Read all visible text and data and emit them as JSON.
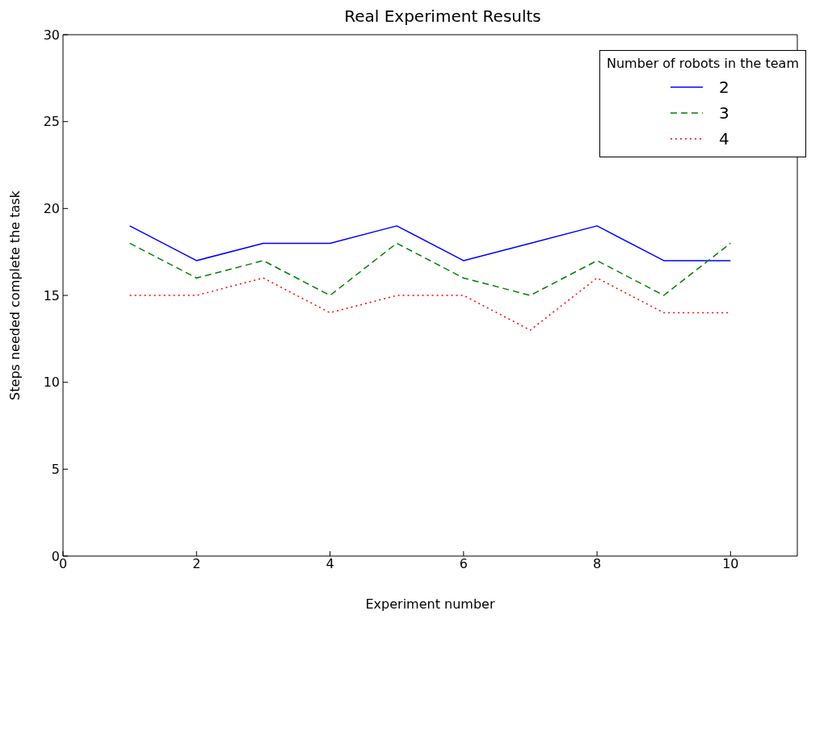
{
  "chart_data": {
    "type": "line",
    "title": "Real Experiment Results",
    "xlabel": "Experiment number",
    "ylabel": "Steps needed complete the task",
    "legend_title": "Number of robots in the team",
    "x": [
      1,
      2,
      3,
      4,
      5,
      6,
      7,
      8,
      9,
      10
    ],
    "series": [
      {
        "name": "2",
        "color": "#0000ff",
        "line_style": "solid",
        "values": [
          19,
          17,
          18,
          18,
          19,
          17,
          18,
          19,
          17,
          17
        ]
      },
      {
        "name": "3",
        "color": "#008000",
        "line_style": "dashed",
        "values": [
          18,
          16,
          17,
          15,
          18,
          16,
          15,
          17,
          15,
          18
        ]
      },
      {
        "name": "4",
        "color": "#ff0000",
        "line_style": "dotted",
        "values": [
          15,
          15,
          16,
          14,
          15,
          15,
          13,
          16,
          14,
          14
        ]
      }
    ],
    "xlim": [
      0,
      11
    ],
    "xticks": [
      0,
      2,
      4,
      6,
      8,
      10
    ],
    "ylim": [
      0,
      30
    ],
    "yticks": [
      0,
      5,
      10,
      15,
      20,
      25,
      30
    ],
    "grid": false,
    "legend": "top right",
    "marker": "none"
  }
}
